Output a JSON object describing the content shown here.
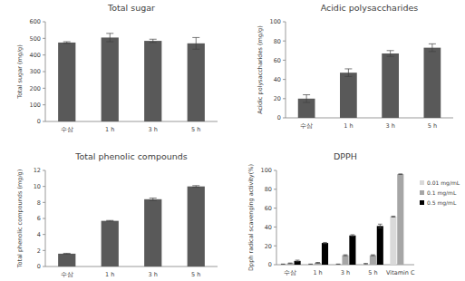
{
  "chart_data": [
    {
      "type": "bar",
      "title": "Total sugar",
      "y_label": "Total sugar (mg/g)",
      "categories": [
        "수삼",
        "1 h",
        "3 h",
        "5 h"
      ],
      "values": [
        475,
        505,
        485,
        470
      ],
      "errors": [
        5,
        25,
        10,
        35
      ],
      "color": "#595959",
      "ylim": [
        0,
        600
      ],
      "yticks": [
        0,
        100,
        200,
        300,
        400,
        500,
        600
      ],
      "grid": false
    },
    {
      "type": "bar",
      "title": "Acidic polysaccharides",
      "y_label": "Acidic polysaccharides (mg/g)",
      "categories": [
        "수삼",
        "1 h",
        "3 h",
        "5 h"
      ],
      "values": [
        20,
        47,
        67,
        73
      ],
      "errors": [
        4,
        4,
        3,
        4
      ],
      "color": "#595959",
      "ylim": [
        0,
        100
      ],
      "yticks": [
        0,
        20,
        40,
        60,
        80,
        100
      ],
      "grid": false
    },
    {
      "type": "bar",
      "title": "Total phenolic compounds",
      "y_label": "Total phenolic compounds (mg/g)",
      "categories": [
        "수삼",
        "1 h",
        "3 h",
        "5 h"
      ],
      "values": [
        1.6,
        5.7,
        8.4,
        10.0
      ],
      "errors": [
        0.05,
        0.05,
        0.15,
        0.1
      ],
      "color": "#595959",
      "ylim": [
        0,
        12
      ],
      "yticks": [
        0,
        2,
        4,
        6,
        8,
        10,
        12
      ],
      "grid": false
    },
    {
      "type": "bar",
      "title": "DPPH",
      "y_label": "Dpph radical scavenging activity(%)",
      "categories": [
        "수삼",
        "1 h",
        "3 h",
        "5 h",
        "Vitamin C"
      ],
      "series": [
        {
          "name": "0.01 mg/mL",
          "color": "#d9d9d9",
          "values": [
            0.5,
            0.5,
            0.5,
            1,
            51
          ],
          "errors": [
            0.2,
            0.2,
            0.2,
            0.3,
            0.5
          ]
        },
        {
          "name": "0.1 mg/mL",
          "color": "#a6a6a6",
          "values": [
            1.5,
            2,
            10,
            10,
            96
          ],
          "errors": [
            0.3,
            0.4,
            0.5,
            0.5,
            0.3
          ]
        },
        {
          "name": "0.5 mg/mL",
          "color": "#000000",
          "values": [
            4,
            23,
            31,
            41,
            null
          ],
          "errors": [
            0.8,
            0.6,
            0.8,
            2,
            null
          ]
        }
      ],
      "ylim": [
        0,
        100
      ],
      "yticks": [
        0,
        20,
        40,
        60,
        80,
        100
      ],
      "grid": false,
      "legend": "right"
    }
  ]
}
